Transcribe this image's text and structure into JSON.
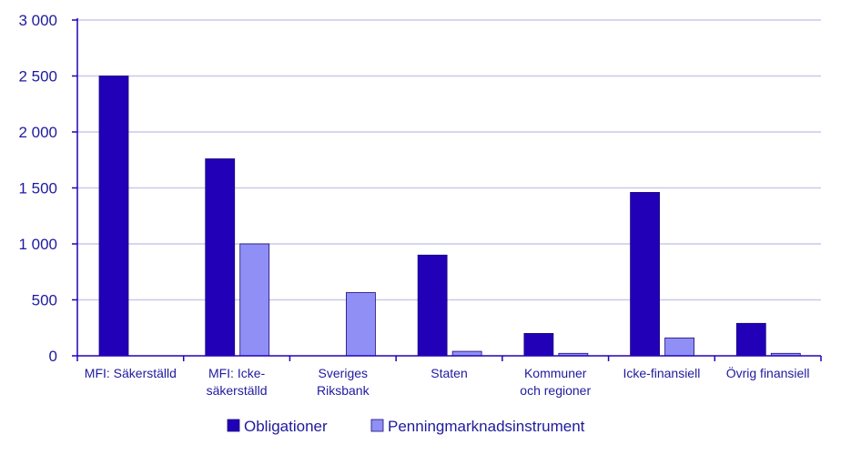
{
  "chart_data": {
    "type": "bar",
    "categories": [
      [
        "MFI: Säkerställd"
      ],
      [
        "MFI: Icke-",
        "säkerställd"
      ],
      [
        "Sveriges",
        "Riksbank"
      ],
      [
        "Staten"
      ],
      [
        "Kommuner",
        "och regioner"
      ],
      [
        "Icke-finansiell"
      ],
      [
        "Övrig finansiell"
      ]
    ],
    "series": [
      {
        "name": "Obligationer",
        "color": "#2200b8",
        "values": [
          2500,
          1760,
          0,
          900,
          200,
          1460,
          290
        ]
      },
      {
        "name": "Penningmarknadsinstrument",
        "color": "#8f8ff5",
        "values": [
          0,
          1000,
          565,
          40,
          22,
          160,
          22
        ]
      }
    ],
    "ylim": [
      0,
      3000
    ],
    "yticks": [
      0,
      500,
      1000,
      1500,
      2000,
      2500,
      3000
    ],
    "ytick_labels": [
      "0",
      "500",
      "1 000",
      "1 500",
      "2 000",
      "2 500",
      "3 000"
    ],
    "grid": true,
    "legend": "bottom",
    "colors": {
      "axis": "#2200b8",
      "grid": "#c9c9e8",
      "text": "#1f1a9e"
    }
  }
}
